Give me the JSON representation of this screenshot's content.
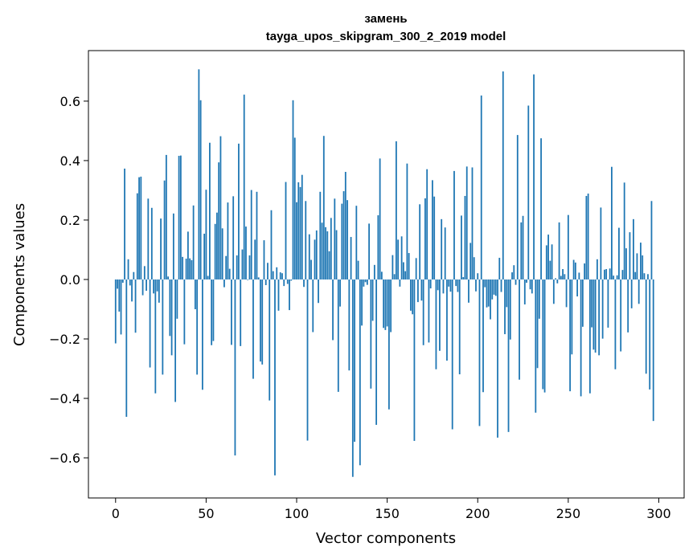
{
  "chart_data": {
    "type": "bar",
    "title_line1": "замень",
    "title_line2": "tayga_upos_skipgram_300_2_2019 model",
    "xlabel": "Vector components",
    "ylabel": "Components values",
    "xlim": [
      -15,
      314
    ],
    "ylim": [
      -0.735,
      0.77
    ],
    "xticks": [
      0,
      50,
      100,
      150,
      200,
      250,
      300
    ],
    "yticks": [
      -0.6,
      -0.4,
      -0.2,
      0.0,
      0.2,
      0.4,
      0.6
    ],
    "ytick_labels": [
      "−0.6",
      "−0.4",
      "−0.2",
      "0.0",
      "0.2",
      "0.4",
      "0.6"
    ],
    "bar_color": "#1f77b4",
    "grid": false,
    "values": [
      -0.215,
      -0.031,
      -0.108,
      -0.185,
      -0.011,
      0.373,
      -0.462,
      0.068,
      -0.02,
      -0.074,
      0.025,
      -0.179,
      0.29,
      0.344,
      0.346,
      -0.053,
      0.045,
      -0.038,
      0.272,
      -0.296,
      0.241,
      -0.047,
      -0.383,
      -0.04,
      -0.078,
      0.205,
      -0.32,
      0.333,
      0.419,
      0.01,
      -0.19,
      -0.255,
      0.222,
      -0.412,
      -0.132,
      0.416,
      0.417,
      0.076,
      -0.218,
      0.07,
      0.161,
      0.071,
      0.065,
      0.249,
      -0.1,
      -0.32,
      0.707,
      0.603,
      -0.371,
      0.154,
      0.302,
      0.012,
      0.46,
      -0.221,
      -0.207,
      0.187,
      0.225,
      0.394,
      0.482,
      0.172,
      -0.026,
      0.079,
      0.259,
      0.036,
      -0.22,
      0.28,
      -0.592,
      0.081,
      0.457,
      -0.224,
      0.101,
      0.622,
      0.178,
      -0.002,
      0.081,
      0.301,
      -0.334,
      0.134,
      0.295,
      0.007,
      -0.276,
      -0.286,
      0.132,
      -0.019,
      0.056,
      -0.407,
      0.233,
      0.028,
      -0.659,
      0.041,
      -0.105,
      0.024,
      0.021,
      -0.022,
      0.328,
      -0.015,
      -0.103,
      -0.004,
      0.603,
      0.477,
      0.26,
      0.327,
      0.311,
      0.352,
      -0.025,
      0.264,
      -0.542,
      0.152,
      0.066,
      -0.177,
      0.134,
      0.165,
      -0.079,
      0.295,
      0.191,
      0.483,
      0.176,
      0.162,
      0.095,
      0.207,
      -0.204,
      0.272,
      0.166,
      -0.378,
      -0.091,
      0.255,
      0.297,
      0.362,
      0.267,
      -0.306,
      0.143,
      -0.664,
      -0.546,
      0.248,
      0.063,
      -0.625,
      -0.155,
      -0.024,
      -0.009,
      -0.018,
      0.188,
      -0.367,
      -0.139,
      0.049,
      -0.489,
      0.216,
      0.407,
      0.026,
      -0.163,
      -0.17,
      -0.158,
      -0.437,
      -0.177,
      0.082,
      0.018,
      0.465,
      0.134,
      -0.024,
      0.145,
      0.058,
      0.028,
      0.39,
      0.089,
      -0.105,
      -0.117,
      -0.543,
      0.072,
      -0.076,
      0.253,
      -0.071,
      -0.221,
      0.273,
      0.371,
      -0.212,
      -0.03,
      0.334,
      0.279,
      -0.302,
      -0.036,
      -0.24,
      0.203,
      -0.047,
      0.175,
      -0.273,
      -0.024,
      -0.041,
      -0.504,
      0.365,
      -0.022,
      -0.042,
      -0.319,
      0.215,
      0.008,
      0.281,
      0.38,
      -0.078,
      0.123,
      0.377,
      0.075,
      -0.04,
      0.021,
      -0.493,
      0.619,
      -0.379,
      -0.026,
      -0.094,
      -0.091,
      -0.134,
      -0.067,
      -0.051,
      -0.055,
      -0.532,
      0.073,
      -0.042,
      0.7,
      -0.184,
      -0.093,
      -0.513,
      -0.202,
      0.024,
      0.048,
      -0.018,
      0.486,
      -0.337,
      0.192,
      0.214,
      -0.084,
      -0.011,
      0.585,
      -0.033,
      -0.047,
      0.69,
      -0.448,
      -0.298,
      -0.132,
      0.475,
      -0.369,
      -0.38,
      0.115,
      0.151,
      0.063,
      0.118,
      -0.082,
      0.004,
      -0.013,
      0.192,
      0.012,
      0.035,
      0.018,
      -0.093,
      0.217,
      -0.376,
      -0.252,
      0.066,
      0.057,
      -0.057,
      0.023,
      -0.393,
      -0.159,
      0.054,
      0.281,
      0.289,
      -0.383,
      -0.161,
      -0.236,
      -0.246,
      0.068,
      -0.255,
      0.242,
      -0.199,
      0.033,
      0.035,
      -0.162,
      0.037,
      0.379,
      0.013,
      -0.302,
      0.014,
      0.174,
      -0.242,
      0.032,
      0.326,
      0.105,
      -0.178,
      0.159,
      -0.097,
      0.203,
      0.025,
      0.088,
      -0.082,
      0.124,
      0.081,
      0.021,
      -0.317,
      0.018,
      -0.37,
      0.264,
      -0.476
    ]
  }
}
